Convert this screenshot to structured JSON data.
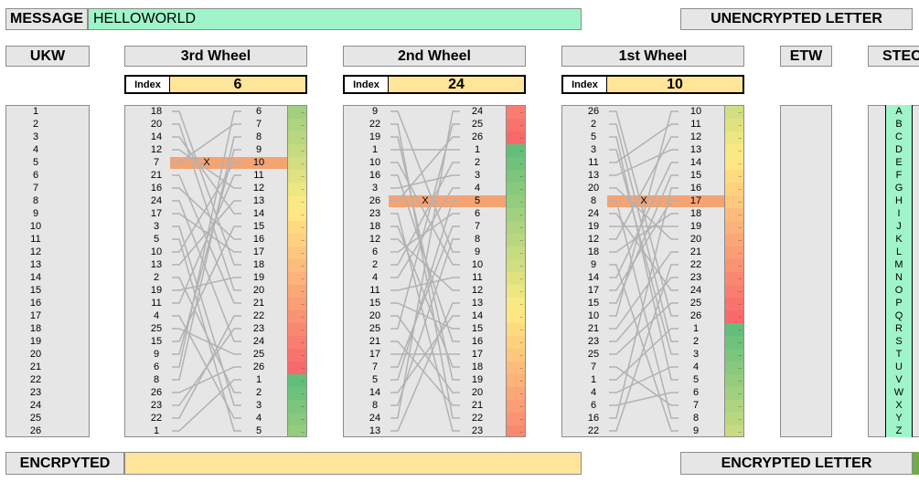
{
  "message": {
    "label": "MESSAGE",
    "value": "HELLOWORLD"
  },
  "encrypted": {
    "label": "ENCRPYTED",
    "value": ""
  },
  "unencrypted_letter": {
    "label": "UNENCRYPTED LETTER"
  },
  "encrypted_letter": {
    "label": "ENCRYPTED LETTER"
  },
  "ukw": {
    "label": "UKW",
    "values": [
      "1",
      "2",
      "3",
      "4",
      "5",
      "6",
      "7",
      "8",
      "9",
      "10",
      "11",
      "12",
      "13",
      "14",
      "15",
      "16",
      "17",
      "18",
      "19",
      "20",
      "21",
      "22",
      "23",
      "24",
      "25",
      "26"
    ]
  },
  "etw": {
    "label": "ETW"
  },
  "stecker": {
    "label": "STECKER",
    "letters": [
      "A",
      "B",
      "C",
      "D",
      "E",
      "F",
      "G",
      "H",
      "I",
      "J",
      "K",
      "L",
      "M",
      "N",
      "O",
      "P",
      "Q",
      "R",
      "S",
      "T",
      "U",
      "V",
      "W",
      "X",
      "Y",
      "Z"
    ]
  },
  "mark": "X",
  "colors": {
    "accent_yellow": "#ffe599",
    "message_green": "#9ff5c9",
    "selected": "#f4a373",
    "wire": "#b2b2b2"
  },
  "wheels": [
    {
      "id": "w3",
      "label": "3rd Wheel",
      "index_label": "Index",
      "index": "6",
      "selected_row": 4,
      "left": [
        "18",
        "20",
        "14",
        "12",
        "7",
        "21",
        "16",
        "24",
        "17",
        "3",
        "5",
        "10",
        "13",
        "2",
        "19",
        "11",
        "4",
        "25",
        "15",
        "9",
        "6",
        "8",
        "26",
        "23",
        "22",
        "1"
      ],
      "right": [
        "6",
        "7",
        "8",
        "9",
        "10",
        "11",
        "12",
        "13",
        "14",
        "15",
        "16",
        "17",
        "18",
        "19",
        "20",
        "21",
        "22",
        "23",
        "24",
        "25",
        "26",
        "1",
        "2",
        "3",
        "4",
        "5"
      ]
    },
    {
      "id": "w2",
      "label": "2nd Wheel",
      "index_label": "Index",
      "index": "24",
      "selected_row": 7,
      "left": [
        "9",
        "22",
        "19",
        "1",
        "10",
        "16",
        "3",
        "26",
        "23",
        "18",
        "12",
        "6",
        "2",
        "4",
        "11",
        "15",
        "20",
        "25",
        "21",
        "17",
        "7",
        "5",
        "14",
        "8",
        "24",
        "13"
      ],
      "right": [
        "24",
        "25",
        "26",
        "1",
        "2",
        "3",
        "4",
        "5",
        "6",
        "7",
        "8",
        "9",
        "10",
        "11",
        "12",
        "13",
        "14",
        "15",
        "16",
        "17",
        "18",
        "19",
        "20",
        "21",
        "22",
        "23"
      ]
    },
    {
      "id": "w1",
      "label": "1st Wheel",
      "index_label": "Index",
      "index": "10",
      "selected_row": 7,
      "left": [
        "26",
        "2",
        "5",
        "3",
        "11",
        "13",
        "20",
        "8",
        "24",
        "19",
        "12",
        "18",
        "9",
        "14",
        "17",
        "15",
        "10",
        "21",
        "23",
        "25",
        "7",
        "1",
        "4",
        "6",
        "16",
        "22"
      ],
      "right": [
        "10",
        "11",
        "12",
        "13",
        "14",
        "15",
        "16",
        "17",
        "18",
        "19",
        "20",
        "21",
        "22",
        "23",
        "24",
        "25",
        "26",
        "1",
        "2",
        "3",
        "4",
        "5",
        "6",
        "7",
        "8",
        "9"
      ]
    }
  ]
}
